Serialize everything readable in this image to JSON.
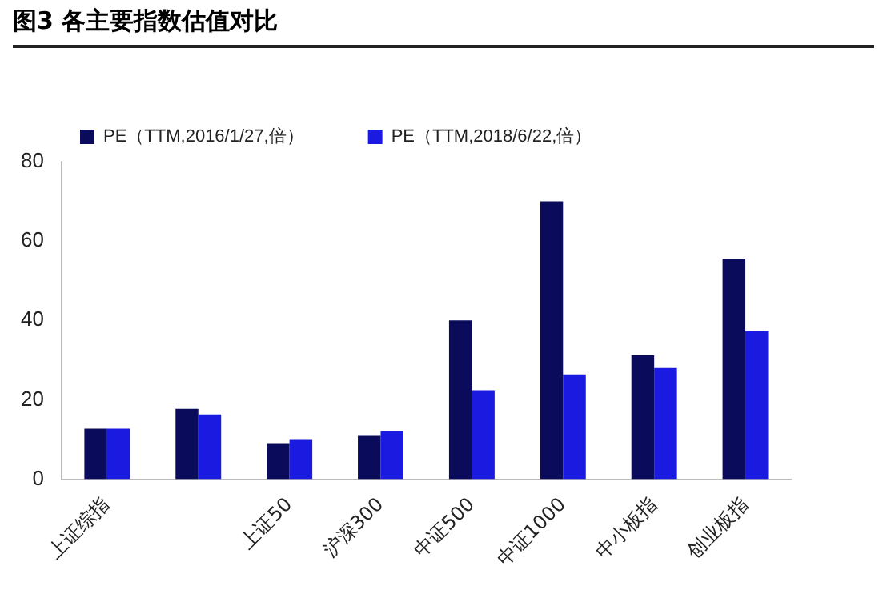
{
  "chart_data": {
    "type": "bar",
    "title": "图3  各主要指数估值对比",
    "categories": [
      "上证综指",
      null,
      "上证50",
      "沪深300",
      "中证500",
      "中证1000",
      "中小板指",
      "创业板指"
    ],
    "series": [
      {
        "name": "PE（TTM,2016/1/27,倍）",
        "color": "#0b0b5c",
        "values": [
          12.7,
          17.7,
          8.9,
          10.9,
          40,
          70,
          31.2,
          55.6
        ]
      },
      {
        "name": "PE（TTM,2018/6/22,倍）",
        "color": "#1a1ae0",
        "values": [
          12.7,
          16.3,
          9.9,
          12.1,
          22.4,
          26.4,
          28,
          37.3
        ]
      }
    ],
    "ylim": [
      0,
      80
    ],
    "yticks": [
      0,
      20,
      40,
      60,
      80
    ],
    "grid": false,
    "legend": "top left"
  }
}
